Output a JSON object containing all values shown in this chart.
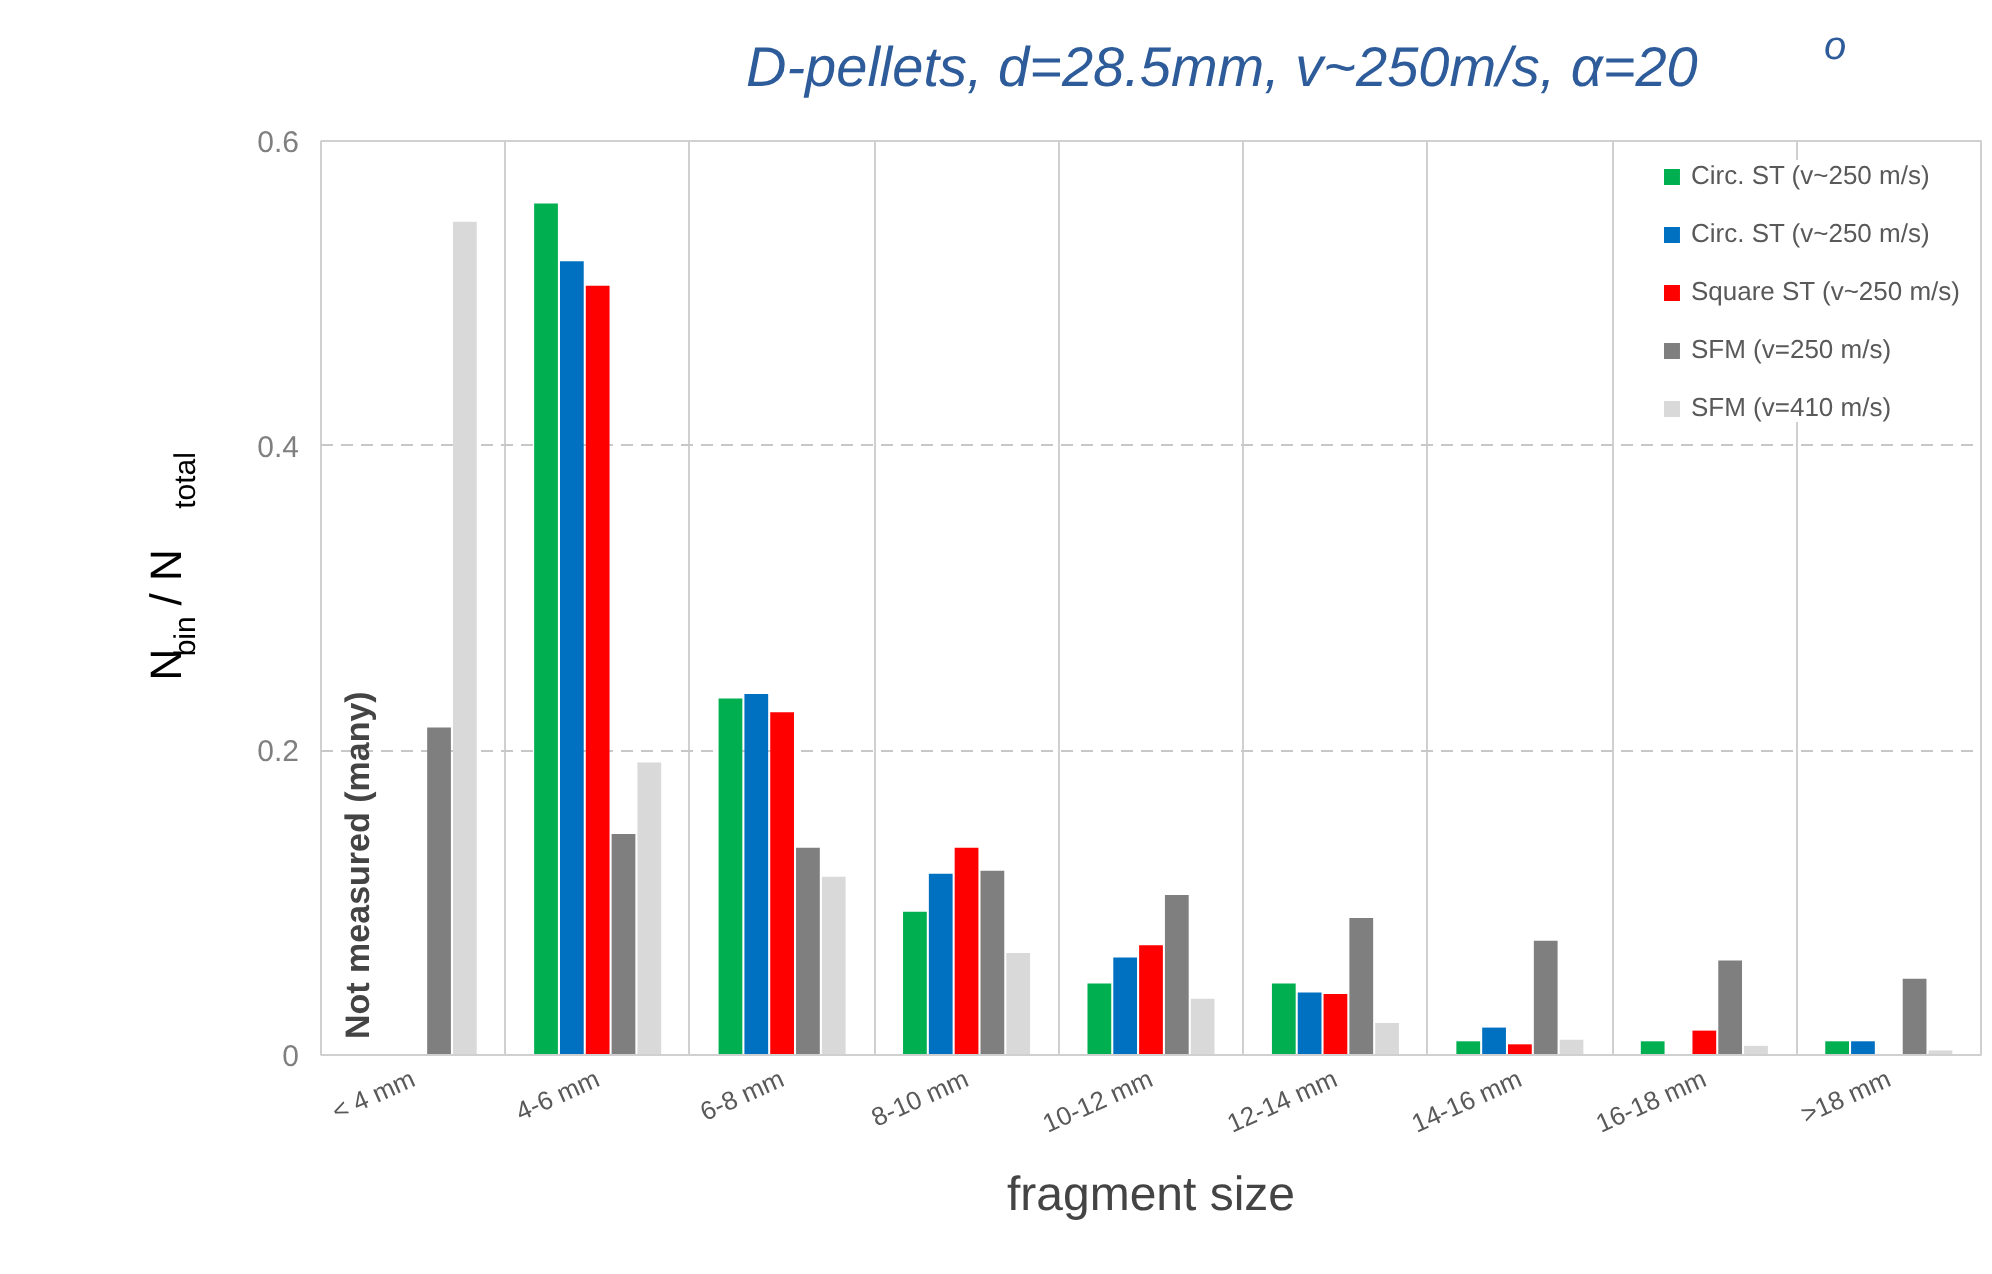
{
  "chart_data": {
    "type": "bar",
    "title": "D-pellets, d=28.5mm, v~250m/s, α=20$^{o}$",
    "xlabel": "fragment size",
    "ylabel": "N$_{bin}$ / N$_{total}$",
    "categories": [
      "< 4 mm",
      "4-6 mm",
      "6-8 mm",
      "8-10 mm",
      "10-12 mm",
      "12-14 mm",
      "14-16 mm",
      "16-18 mm",
      ">18 mm"
    ],
    "series": [
      {
        "name": "Circ. ST (v~250 m/s)",
        "color": "#00b050",
        "values": [
          0,
          0.559,
          0.234,
          0.094,
          0.047,
          0.047,
          0.009,
          0.009,
          0.009
        ]
      },
      {
        "name": "Circ. ST (v~250 m/s)",
        "color": "#0070c0",
        "values": [
          0,
          0.521,
          0.237,
          0.119,
          0.064,
          0.041,
          0.018,
          0,
          0.009
        ]
      },
      {
        "name": "Square ST (v~250 m/s)",
        "color": "#ff0000",
        "values": [
          0,
          0.505,
          0.225,
          0.136,
          0.072,
          0.04,
          0.007,
          0.016,
          0
        ]
      },
      {
        "name": "SFM (v=250 m/s)",
        "color": "#7f7f7f",
        "values": [
          0.215,
          0.145,
          0.136,
          0.121,
          0.105,
          0.09,
          0.075,
          0.062,
          0.05
        ]
      },
      {
        "name": "SFM (v=410 m/s)",
        "color": "#d9d9d9",
        "values": [
          0.547,
          0.192,
          0.117,
          0.067,
          0.037,
          0.021,
          0.01,
          0.006,
          0.003
        ]
      }
    ],
    "ylim": [
      0,
      0.6
    ],
    "yticks": [
      0,
      0.2,
      0.4,
      0.6
    ],
    "grid": true,
    "legend": "top right",
    "annotations": [
      {
        "text": "Not measured (many)",
        "x": "< 4 mm",
        "y": 0
      }
    ]
  }
}
